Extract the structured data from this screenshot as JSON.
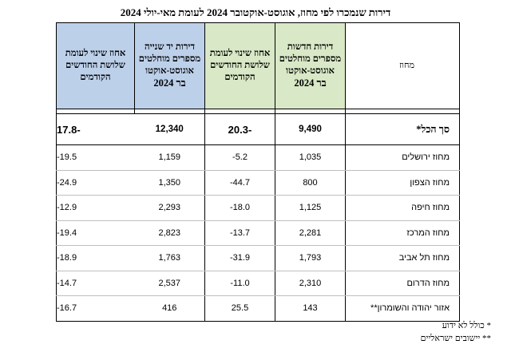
{
  "title": "דירות שנמכרו לפי מחוז, אוגוסט-אוקטובר 2024 לעומת מאי-יולי 2024",
  "headers": {
    "region": "מחוז",
    "new_apts": "דירות חדשות מספרים מוחלטים אוגוסט-אוקטו",
    "new_apts_year": "בר 2024",
    "new_change": "אחוז שינוי לעומת שלושת החודשים הקודמים",
    "second_hand": "דירות יד שנייה מספרים מוחלטים אוגוסט-אוקטו",
    "second_hand_year": "בר 2024",
    "second_change": "אחוז שינוי לעומת שלושת החודשים הקודמים"
  },
  "total": {
    "name": "סך הכל*",
    "new_apts": "9,490",
    "new_change": "-20.3",
    "second_hand": "12,340",
    "second_change": "-17.8"
  },
  "rows": [
    {
      "name": "מחוז ירושלים",
      "new_apts": "1,035",
      "new_change": "5.2-",
      "second_hand": "1,159",
      "second_change": "19.5-"
    },
    {
      "name": "מחוז הצפון",
      "new_apts": "800",
      "new_change": "44.7-",
      "second_hand": "1,350",
      "second_change": "24.9-"
    },
    {
      "name": "מחוז חיפה",
      "new_apts": "1,125",
      "new_change": "18.0-",
      "second_hand": "2,293",
      "second_change": "12.9-"
    },
    {
      "name": "מחוז המרכז",
      "new_apts": "2,281",
      "new_change": "13.7-",
      "second_hand": "2,823",
      "second_change": "19.4-"
    },
    {
      "name": "מחוז תל אביב",
      "new_apts": "1,793",
      "new_change": "31.9-",
      "second_hand": "1,763",
      "second_change": "18.9-"
    },
    {
      "name": "מחוז הדרום",
      "new_apts": "2,310",
      "new_change": "11.0-",
      "second_hand": "2,537",
      "second_change": "14.7-"
    },
    {
      "name": "אזור יהודה והשומרון**",
      "new_apts": "143",
      "new_change": "25.5",
      "second_hand": "416",
      "second_change": "16.7-"
    }
  ],
  "footnotes": {
    "note1": "* כולל לא ידוע",
    "note2": "** יישובים ישראליים"
  },
  "colors": {
    "green_header": "#d9e8c6",
    "blue_header": "#bdd0ea"
  }
}
